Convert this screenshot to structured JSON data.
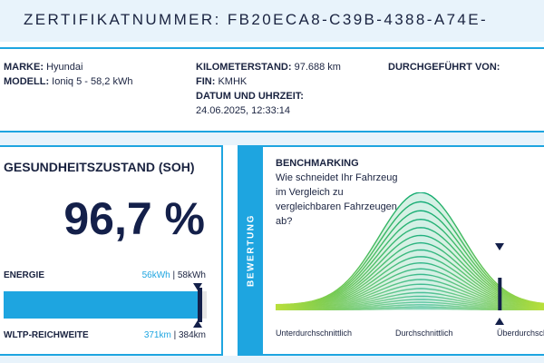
{
  "header": {
    "label": "ZERTIFIKATNUMMER:",
    "value": "FB20ECA8-C39B-4388-A74E-"
  },
  "vehicle": {
    "make_label": "MARKE:",
    "make_value": "Hyundai",
    "model_label": "MODELL:",
    "model_value": "Ioniq 5 - 58,2 kWh",
    "mileage_label": "KILOMETERSTAND:",
    "mileage_value": "97.688 km",
    "vin_label": "FIN:",
    "vin_value": "KMHK",
    "date_label": "DATUM UND UHRZEIT:",
    "date_value": "24.06.2025, 12:33:14",
    "performed_label": "DURCHGEFÜHRT VON:"
  },
  "soh": {
    "title": "GESUNDHEITSZUSTAND (SOH)",
    "value": "96,7 %",
    "energy_label": "ENERGIE",
    "energy_current": "56kWh",
    "energy_separator": " | ",
    "energy_total": "58kWh",
    "energy_fraction": 0.967,
    "range_label": "WLTP-REICHWEITE",
    "range_current": "371km",
    "range_separator": " | ",
    "range_total": "384km"
  },
  "side_tab": "BEWERTUNG",
  "benchmark": {
    "title": "BENCHMARKING",
    "question": "Wie schneidet Ihr Fahrzeug im Vergleich zu vergleichbaren Fahrzeugen ab?",
    "labels": [
      "Unterdurchschnittlich",
      "Durchschnittlich",
      "Überdurchschnittlich"
    ],
    "marker_position": 0.83
  },
  "colors": {
    "accent": "#1ea5e0",
    "dark": "#14204a",
    "band": "#e8f3fb",
    "curve_start": "#b9df3a",
    "curve_end": "#08a873"
  }
}
